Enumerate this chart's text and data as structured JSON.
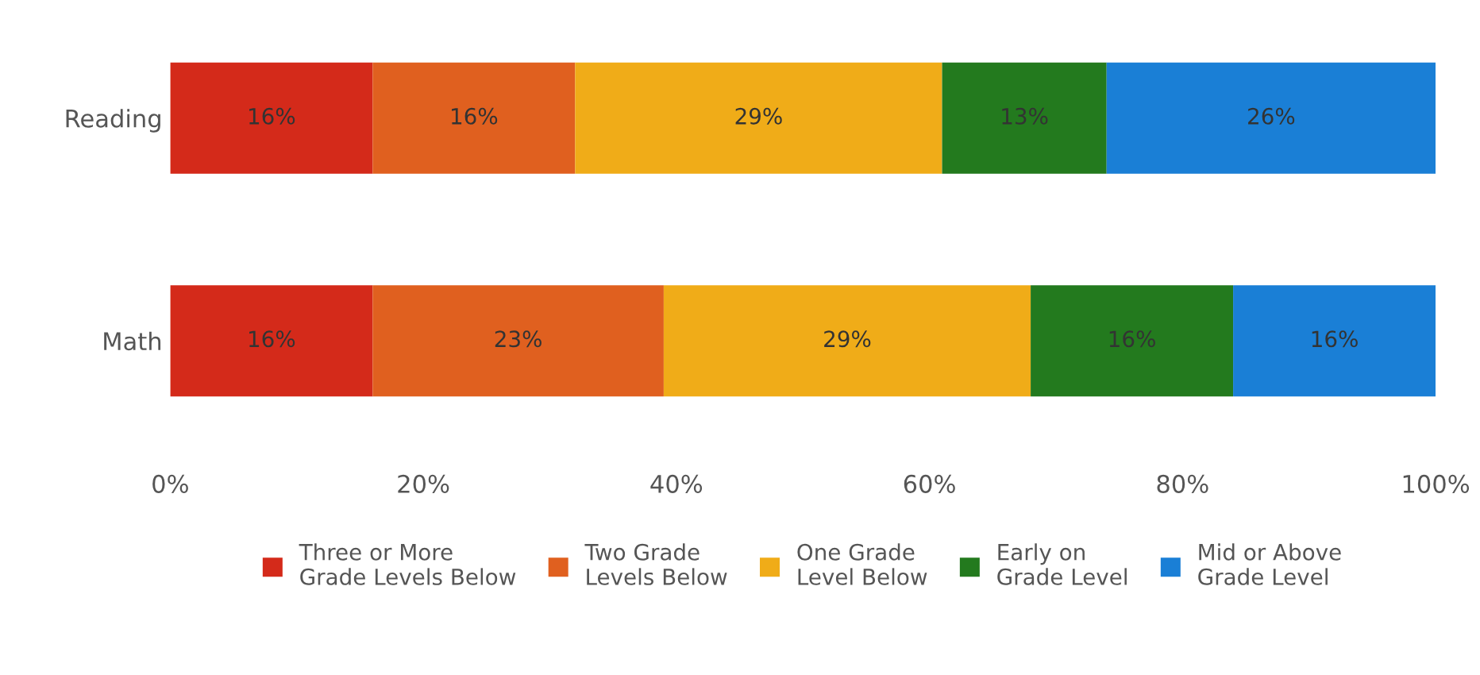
{
  "chart_data": {
    "type": "bar",
    "orientation": "horizontal",
    "stacked": true,
    "categories": [
      "Reading",
      "Math"
    ],
    "series": [
      {
        "name": "Three or More Grade Levels Below",
        "color": "#d42a1a",
        "values": [
          16,
          16
        ],
        "value_labels": [
          "16%",
          "16%"
        ]
      },
      {
        "name": "Two Grade Levels Below",
        "color": "#e0601f",
        "values": [
          16,
          23
        ],
        "value_labels": [
          "16%",
          "23%"
        ]
      },
      {
        "name": "One Grade Level Below",
        "color": "#f0ac18",
        "values": [
          29,
          29
        ],
        "value_labels": [
          "29%",
          "29%"
        ]
      },
      {
        "name": "Early on Grade Level",
        "color": "#237a1e",
        "values": [
          13,
          16
        ],
        "value_labels": [
          "13%",
          "16%"
        ]
      },
      {
        "name": "Mid or Above Grade Level",
        "color": "#1a7fd6",
        "values": [
          26,
          16
        ],
        "value_labels": [
          "26%",
          "16%"
        ]
      }
    ],
    "xlim": [
      0,
      100
    ],
    "xticks": [
      {
        "value": 0,
        "label": "0%"
      },
      {
        "value": 20,
        "label": "20%"
      },
      {
        "value": 40,
        "label": "40%"
      },
      {
        "value": 60,
        "label": "60%"
      },
      {
        "value": 80,
        "label": "80%"
      },
      {
        "value": 100,
        "label": "100%"
      }
    ],
    "grid": false,
    "legend": "bottom"
  }
}
